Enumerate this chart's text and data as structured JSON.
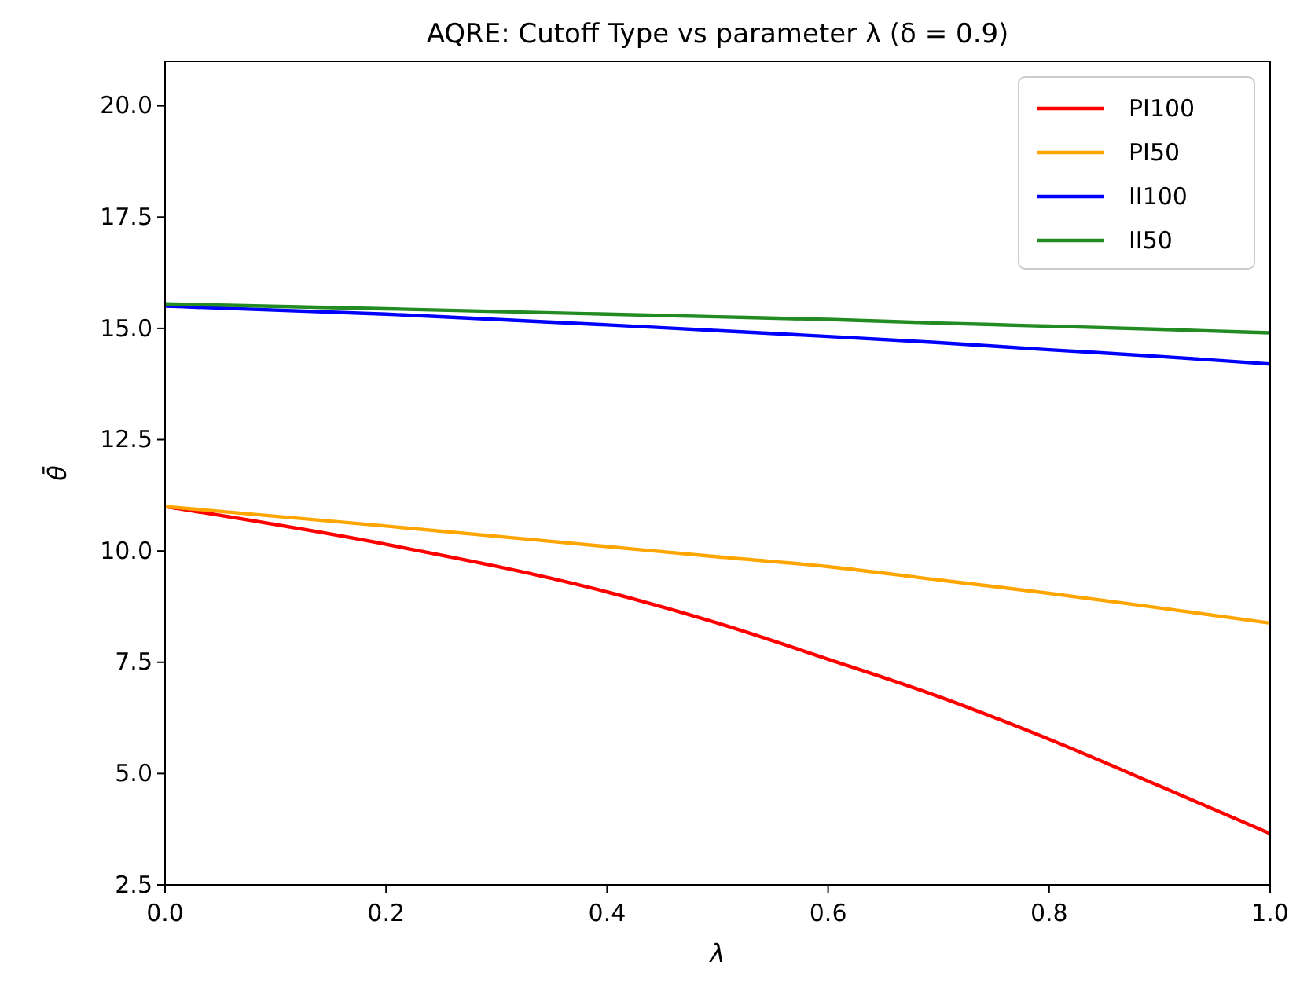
{
  "chart_data": {
    "type": "line",
    "title": "AQRE: Cutoff Type vs parameter λ (δ = 0.9)",
    "xlabel": "λ",
    "ylabel": "θ̄",
    "xlim": [
      0,
      1
    ],
    "xticks": [
      {
        "value": 0,
        "label": "0.0"
      },
      0.2,
      0.4,
      0.6,
      0.8,
      {
        "value": 1,
        "label": "1.0"
      }
    ],
    "ylim": [
      2.5,
      21
    ],
    "yticks": [
      2.5,
      {
        "value": 5,
        "label": "5.0"
      },
      7.5,
      {
        "value": 10,
        "label": "10.0"
      },
      12.5,
      {
        "value": 15,
        "label": "15.0"
      },
      17.5,
      {
        "value": 20,
        "label": "20.0"
      }
    ],
    "grid": false,
    "legend": "top right",
    "marker": "none",
    "line_style": "solid",
    "x": [
      0,
      0.2,
      0.4,
      0.5,
      0.6,
      0.7,
      0.8,
      0.9,
      1.0
    ],
    "series": [
      {
        "name": "PI100",
        "color": "#ff0000",
        "values": [
          11.0,
          10.15,
          9.08,
          8.38,
          7.57,
          6.73,
          5.77,
          4.72,
          3.65
        ]
      },
      {
        "name": "PI50",
        "color": "#ffa500",
        "values": [
          11.0,
          10.56,
          10.1,
          9.87,
          9.65,
          9.35,
          9.05,
          8.72,
          8.38
        ]
      },
      {
        "name": "II100",
        "color": "#0000ff",
        "values": [
          15.5,
          15.32,
          15.08,
          14.95,
          14.82,
          14.68,
          14.52,
          14.37,
          14.2
        ]
      },
      {
        "name": "II50",
        "color": "#228b22",
        "values": [
          15.55,
          15.44,
          15.32,
          15.26,
          15.2,
          15.12,
          15.05,
          14.98,
          14.9
        ]
      }
    ]
  }
}
